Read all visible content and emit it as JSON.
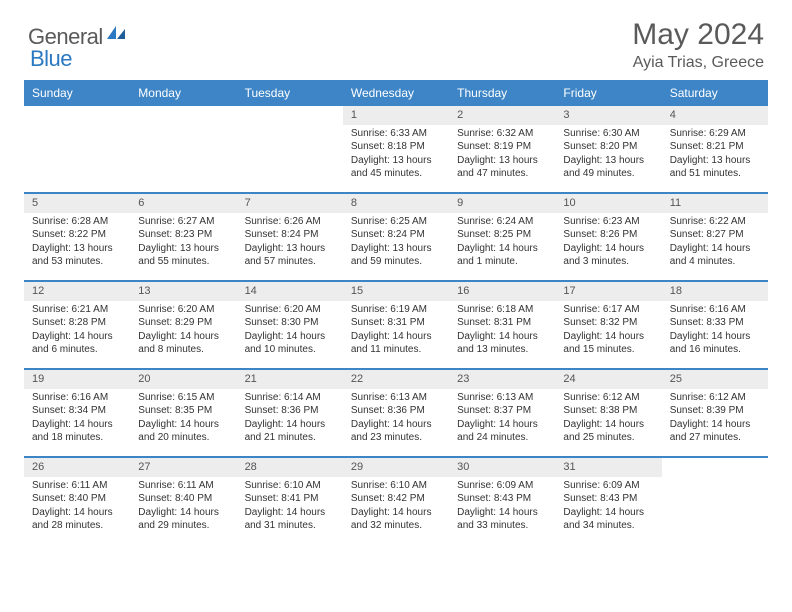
{
  "logo": {
    "text1": "General",
    "text2": "Blue"
  },
  "title": "May 2024",
  "location": "Ayia Trias, Greece",
  "colors": {
    "header_bg": "#3d85c6",
    "header_text": "#ffffff",
    "daynum_bg": "#ededed",
    "body_text": "#333333",
    "rule": "#3d85c6",
    "logo_gray": "#5a5a5a",
    "logo_blue": "#2b79c2"
  },
  "weekdays": [
    "Sunday",
    "Monday",
    "Tuesday",
    "Wednesday",
    "Thursday",
    "Friday",
    "Saturday"
  ],
  "weeks": [
    [
      null,
      null,
      null,
      {
        "n": "1",
        "sr": "6:33 AM",
        "ss": "8:18 PM",
        "dl": "13 hours and 45 minutes."
      },
      {
        "n": "2",
        "sr": "6:32 AM",
        "ss": "8:19 PM",
        "dl": "13 hours and 47 minutes."
      },
      {
        "n": "3",
        "sr": "6:30 AM",
        "ss": "8:20 PM",
        "dl": "13 hours and 49 minutes."
      },
      {
        "n": "4",
        "sr": "6:29 AM",
        "ss": "8:21 PM",
        "dl": "13 hours and 51 minutes."
      }
    ],
    [
      {
        "n": "5",
        "sr": "6:28 AM",
        "ss": "8:22 PM",
        "dl": "13 hours and 53 minutes."
      },
      {
        "n": "6",
        "sr": "6:27 AM",
        "ss": "8:23 PM",
        "dl": "13 hours and 55 minutes."
      },
      {
        "n": "7",
        "sr": "6:26 AM",
        "ss": "8:24 PM",
        "dl": "13 hours and 57 minutes."
      },
      {
        "n": "8",
        "sr": "6:25 AM",
        "ss": "8:24 PM",
        "dl": "13 hours and 59 minutes."
      },
      {
        "n": "9",
        "sr": "6:24 AM",
        "ss": "8:25 PM",
        "dl": "14 hours and 1 minute."
      },
      {
        "n": "10",
        "sr": "6:23 AM",
        "ss": "8:26 PM",
        "dl": "14 hours and 3 minutes."
      },
      {
        "n": "11",
        "sr": "6:22 AM",
        "ss": "8:27 PM",
        "dl": "14 hours and 4 minutes."
      }
    ],
    [
      {
        "n": "12",
        "sr": "6:21 AM",
        "ss": "8:28 PM",
        "dl": "14 hours and 6 minutes."
      },
      {
        "n": "13",
        "sr": "6:20 AM",
        "ss": "8:29 PM",
        "dl": "14 hours and 8 minutes."
      },
      {
        "n": "14",
        "sr": "6:20 AM",
        "ss": "8:30 PM",
        "dl": "14 hours and 10 minutes."
      },
      {
        "n": "15",
        "sr": "6:19 AM",
        "ss": "8:31 PM",
        "dl": "14 hours and 11 minutes."
      },
      {
        "n": "16",
        "sr": "6:18 AM",
        "ss": "8:31 PM",
        "dl": "14 hours and 13 minutes."
      },
      {
        "n": "17",
        "sr": "6:17 AM",
        "ss": "8:32 PM",
        "dl": "14 hours and 15 minutes."
      },
      {
        "n": "18",
        "sr": "6:16 AM",
        "ss": "8:33 PM",
        "dl": "14 hours and 16 minutes."
      }
    ],
    [
      {
        "n": "19",
        "sr": "6:16 AM",
        "ss": "8:34 PM",
        "dl": "14 hours and 18 minutes."
      },
      {
        "n": "20",
        "sr": "6:15 AM",
        "ss": "8:35 PM",
        "dl": "14 hours and 20 minutes."
      },
      {
        "n": "21",
        "sr": "6:14 AM",
        "ss": "8:36 PM",
        "dl": "14 hours and 21 minutes."
      },
      {
        "n": "22",
        "sr": "6:13 AM",
        "ss": "8:36 PM",
        "dl": "14 hours and 23 minutes."
      },
      {
        "n": "23",
        "sr": "6:13 AM",
        "ss": "8:37 PM",
        "dl": "14 hours and 24 minutes."
      },
      {
        "n": "24",
        "sr": "6:12 AM",
        "ss": "8:38 PM",
        "dl": "14 hours and 25 minutes."
      },
      {
        "n": "25",
        "sr": "6:12 AM",
        "ss": "8:39 PM",
        "dl": "14 hours and 27 minutes."
      }
    ],
    [
      {
        "n": "26",
        "sr": "6:11 AM",
        "ss": "8:40 PM",
        "dl": "14 hours and 28 minutes."
      },
      {
        "n": "27",
        "sr": "6:11 AM",
        "ss": "8:40 PM",
        "dl": "14 hours and 29 minutes."
      },
      {
        "n": "28",
        "sr": "6:10 AM",
        "ss": "8:41 PM",
        "dl": "14 hours and 31 minutes."
      },
      {
        "n": "29",
        "sr": "6:10 AM",
        "ss": "8:42 PM",
        "dl": "14 hours and 32 minutes."
      },
      {
        "n": "30",
        "sr": "6:09 AM",
        "ss": "8:43 PM",
        "dl": "14 hours and 33 minutes."
      },
      {
        "n": "31",
        "sr": "6:09 AM",
        "ss": "8:43 PM",
        "dl": "14 hours and 34 minutes."
      },
      null
    ]
  ],
  "labels": {
    "sunrise": "Sunrise:",
    "sunset": "Sunset:",
    "daylight": "Daylight:"
  }
}
